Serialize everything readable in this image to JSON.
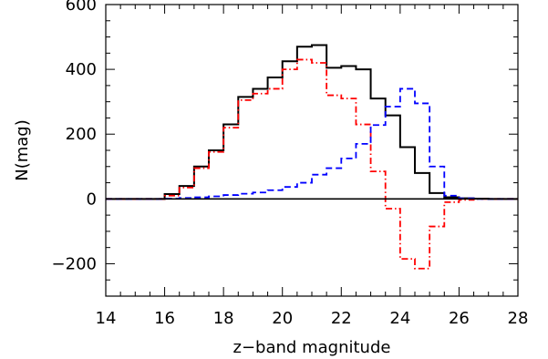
{
  "chart_data": {
    "type": "line",
    "xlabel": "z−band magnitude",
    "ylabel": "N(mag)",
    "xlim": [
      14,
      28
    ],
    "ylim": [
      -300,
      600
    ],
    "xticks": [
      14,
      16,
      18,
      20,
      22,
      24,
      26,
      28
    ],
    "xtick_labels": [
      "14",
      "16",
      "18",
      "20",
      "22",
      "24",
      "26",
      "28"
    ],
    "yticks": [
      -200,
      0,
      200,
      400,
      600
    ],
    "ytick_labels": [
      "−200",
      "0",
      "200",
      "400",
      "600"
    ],
    "bin_edges": [
      14.0,
      14.5,
      15.0,
      15.5,
      16.0,
      16.5,
      17.0,
      17.5,
      18.0,
      18.5,
      19.0,
      19.5,
      20.0,
      20.5,
      21.0,
      21.5,
      22.0,
      22.5,
      23.0,
      23.5,
      24.0,
      24.5,
      25.0,
      25.5,
      26.0,
      26.5,
      27.0,
      27.5,
      28.0
    ],
    "series": [
      {
        "color": "#000000",
        "line_style": "solid",
        "values": [
          0,
          0,
          0,
          0,
          15,
          40,
          100,
          150,
          230,
          315,
          340,
          375,
          425,
          470,
          475,
          405,
          410,
          400,
          310,
          258,
          160,
          80,
          18,
          5,
          2,
          1,
          0,
          0
        ]
      },
      {
        "color": "#ff0000",
        "line_style": "dash-dot",
        "values": [
          0,
          0,
          0,
          0,
          10,
          35,
          95,
          145,
          220,
          305,
          325,
          340,
          400,
          430,
          420,
          320,
          310,
          230,
          85,
          -30,
          -185,
          -215,
          -85,
          -10,
          -3,
          0,
          0,
          0
        ]
      },
      {
        "color": "#0000ff",
        "line_style": "dashed",
        "values": [
          0,
          0,
          0,
          0,
          1,
          3,
          5,
          8,
          12,
          16,
          20,
          27,
          37,
          50,
          75,
          95,
          125,
          170,
          228,
          285,
          340,
          295,
          100,
          10,
          2,
          0,
          0,
          0
        ]
      }
    ],
    "zero_line": true,
    "grid": false
  }
}
